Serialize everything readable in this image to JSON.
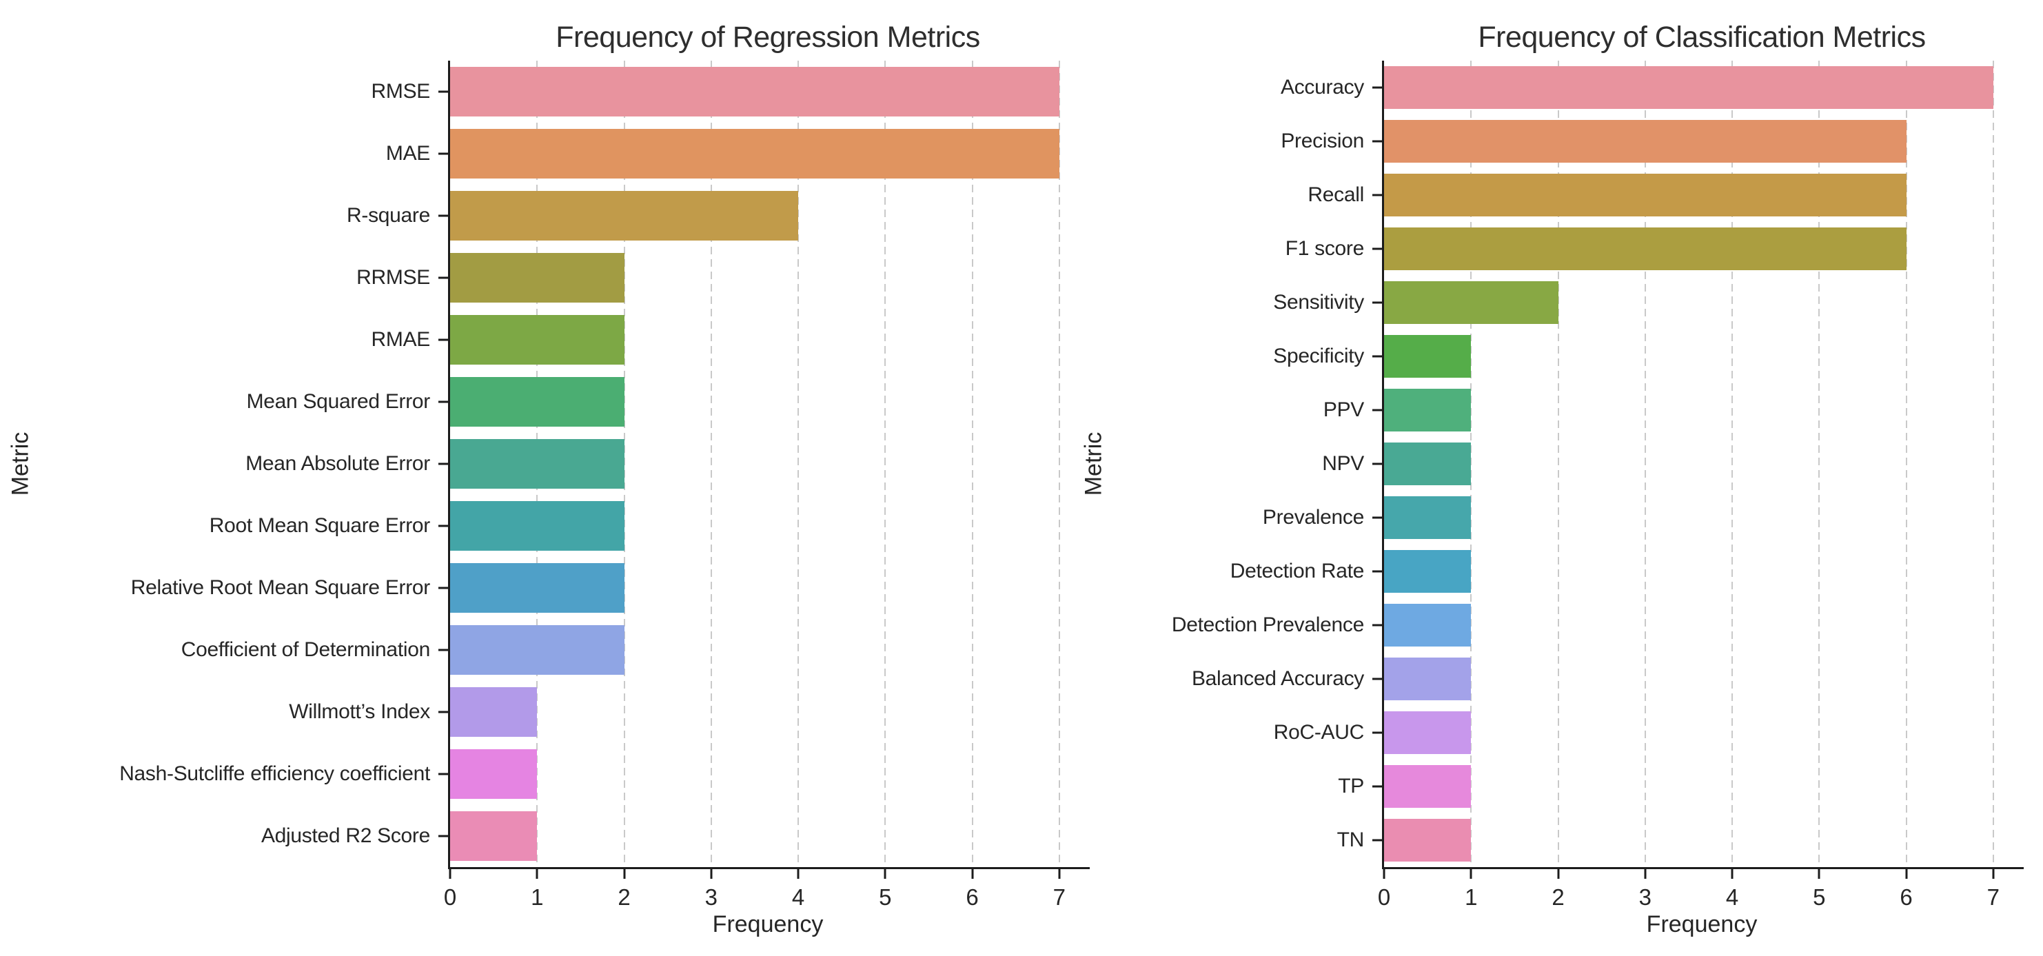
{
  "figure": {
    "background": "#ffffff",
    "spine_color": "#1c1c1c",
    "grid_color": "#c9c9c9",
    "text_color": "#262626",
    "title_color": "#2e2e2e"
  },
  "chart_data": [
    {
      "type": "bar",
      "orientation": "horizontal",
      "title": "Frequency of Regression Metrics",
      "xlabel": "Frequency",
      "ylabel": "Metric",
      "xlim": [
        0,
        7.35
      ],
      "xticks": [
        0,
        1,
        2,
        3,
        4,
        5,
        6,
        7
      ],
      "grid": "vertical-dashed",
      "legend": "none",
      "categories": [
        "RMSE",
        "MAE",
        "R-square",
        "RRMSE",
        "RMAE",
        "Mean Squared Error",
        "Mean Absolute Error",
        "Root Mean Square Error",
        "Relative Root Mean Square Error",
        "Coefficient of Determination",
        "Willmott’s Index",
        "Nash-Sutcliffe efficiency coefficient",
        "Adjusted R2 Score"
      ],
      "values": [
        7,
        7,
        4,
        2,
        2,
        2,
        2,
        2,
        2,
        2,
        1,
        1,
        1
      ],
      "colors": [
        "#e8939e",
        "#e09460",
        "#c19b4a",
        "#a29c43",
        "#7da845",
        "#4bae72",
        "#49a892",
        "#43a5a7",
        "#4fa0c8",
        "#8fa5e4",
        "#b29ae9",
        "#e584e2",
        "#ea8cb5"
      ]
    },
    {
      "type": "bar",
      "orientation": "horizontal",
      "title": "Frequency of Classification Metrics",
      "xlabel": "Frequency",
      "ylabel": "Metric",
      "xlim": [
        0,
        7.35
      ],
      "xticks": [
        0,
        1,
        2,
        3,
        4,
        5,
        6,
        7
      ],
      "grid": "vertical-dashed",
      "legend": "none",
      "categories": [
        "Accuracy",
        "Precision",
        "Recall",
        "F1 score",
        "Sensitivity",
        "Specificity",
        "PPV",
        "NPV",
        "Prevalence",
        "Detection Rate",
        "Detection Prevalence",
        "Balanced Accuracy",
        "RoC-AUC",
        "TP",
        "TN"
      ],
      "values": [
        7,
        6,
        6,
        6,
        2,
        1,
        1,
        1,
        1,
        1,
        1,
        1,
        1,
        1,
        1
      ],
      "colors": [
        "#e8939e",
        "#e19268",
        "#c49a48",
        "#ab9e40",
        "#88a844",
        "#55ad49",
        "#4fb07c",
        "#49a994",
        "#46a7ab",
        "#48a5c4",
        "#6ea9e2",
        "#a3a2e9",
        "#c897ec",
        "#e689dc",
        "#ea8db1"
      ]
    }
  ]
}
